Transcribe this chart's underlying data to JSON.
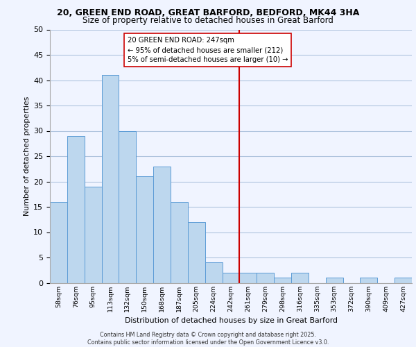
{
  "title_line1": "20, GREEN END ROAD, GREAT BARFORD, BEDFORD, MK44 3HA",
  "title_line2": "Size of property relative to detached houses in Great Barford",
  "xlabel": "Distribution of detached houses by size in Great Barford",
  "ylabel": "Number of detached properties",
  "bin_labels": [
    "58sqm",
    "76sqm",
    "95sqm",
    "113sqm",
    "132sqm",
    "150sqm",
    "168sqm",
    "187sqm",
    "205sqm",
    "224sqm",
    "242sqm",
    "261sqm",
    "279sqm",
    "298sqm",
    "316sqm",
    "335sqm",
    "353sqm",
    "372sqm",
    "390sqm",
    "409sqm",
    "427sqm"
  ],
  "bar_heights": [
    16,
    29,
    19,
    41,
    30,
    21,
    23,
    16,
    12,
    4,
    2,
    2,
    2,
    1,
    2,
    0,
    1,
    0,
    1,
    0,
    1
  ],
  "bar_color": "#bdd7ee",
  "bar_edge_color": "#5b9bd5",
  "vline_x": 10.5,
  "vline_label": "20 GREEN END ROAD: 247sqm",
  "annotation_line2": "← 95% of detached houses are smaller (212)",
  "annotation_line3": "5% of semi-detached houses are larger (10) →",
  "vline_color": "#cc0000",
  "ylim": [
    0,
    50
  ],
  "yticks": [
    0,
    5,
    10,
    15,
    20,
    25,
    30,
    35,
    40,
    45,
    50
  ],
  "grid_color": "#b0c4de",
  "background_color": "#f0f4ff",
  "footnote_line1": "Contains HM Land Registry data © Crown copyright and database right 2025.",
  "footnote_line2": "Contains public sector information licensed under the Open Government Licence v3.0."
}
